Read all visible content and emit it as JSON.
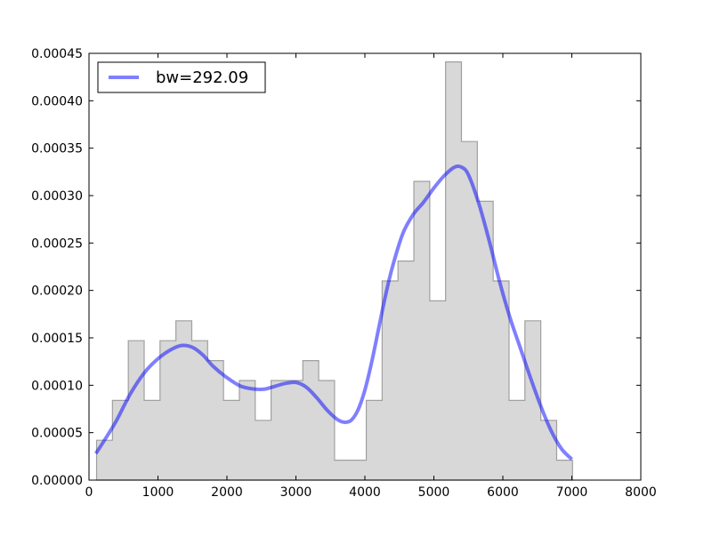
{
  "chart_data": {
    "type": "area",
    "title": "",
    "xlabel": "",
    "ylabel": "",
    "xlim": [
      0,
      8000
    ],
    "ylim": [
      0,
      0.00045
    ],
    "x_ticks": [
      "0",
      "1000",
      "2000",
      "3000",
      "4000",
      "5000",
      "6000",
      "7000",
      "8000"
    ],
    "y_ticks": [
      "0.00000",
      "0.00005",
      "0.00010",
      "0.00015",
      "0.00020",
      "0.00025",
      "0.00030",
      "0.00035",
      "0.00040",
      "0.00045"
    ],
    "grid": false,
    "legend_position": "top-left",
    "histogram": {
      "bin_edges": [
        110,
        340,
        570,
        800,
        1030,
        1260,
        1490,
        1720,
        1950,
        2180,
        2410,
        2640,
        2870,
        3100,
        3330,
        3560,
        3790,
        4020,
        4250,
        4480,
        4710,
        4940,
        5170,
        5400,
        5630,
        5860,
        6090,
        6320,
        6550,
        6780,
        7010
      ],
      "values": [
        4.2e-05,
        8.4e-05,
        0.000147,
        8.4e-05,
        0.000147,
        0.000168,
        0.000147,
        0.000126,
        8.4e-05,
        0.000105,
        6.3e-05,
        0.000105,
        0.000105,
        0.000126,
        0.000105,
        2.1e-05,
        2.1e-05,
        8.4e-05,
        0.00021,
        0.000231,
        0.000315,
        0.000189,
        0.000441,
        0.000357,
        0.000294,
        0.00021,
        8.4e-05,
        0.000168,
        6.3e-05,
        2.1e-05
      ],
      "fill_color": "#d8d8d8",
      "edge_color": "#a0a0a0"
    },
    "series": [
      {
        "name": "bw=292.09",
        "color": "#0000ff",
        "alpha": 0.5,
        "x": [
          100,
          250,
          400,
          600,
          800,
          1000,
          1200,
          1350,
          1500,
          1650,
          1800,
          2000,
          2200,
          2400,
          2550,
          2700,
          2850,
          3000,
          3150,
          3300,
          3450,
          3600,
          3700,
          3800,
          3900,
          4000,
          4100,
          4200,
          4300,
          4400,
          4550,
          4700,
          4850,
          5000,
          5150,
          5300,
          5400,
          5500,
          5650,
          5800,
          5950,
          6100,
          6250,
          6400,
          6550,
          6700,
          6850,
          7000
        ],
        "y": [
          2.8e-05,
          4.5e-05,
          6.3e-05,
          9.1e-05,
          0.000113,
          0.000128,
          0.000138,
          0.000142,
          0.00014,
          0.000132,
          0.00012,
          0.000108,
          9.9e-05,
          9.6e-05,
          9.6e-05,
          9.9e-05,
          0.000102,
          0.000103,
          9.8e-05,
          8.7e-05,
          7.4e-05,
          6.4e-05,
          6.1e-05,
          6.3e-05,
          7.4e-05,
          9.5e-05,
          0.000125,
          0.00016,
          0.000195,
          0.000225,
          0.00026,
          0.00028,
          0.000293,
          0.000308,
          0.000321,
          0.00033,
          0.00033,
          0.000322,
          0.000292,
          0.000253,
          0.00021,
          0.000172,
          0.00014,
          0.000108,
          7.8e-05,
          5.2e-05,
          3.3e-05,
          2.2e-05
        ]
      }
    ]
  }
}
